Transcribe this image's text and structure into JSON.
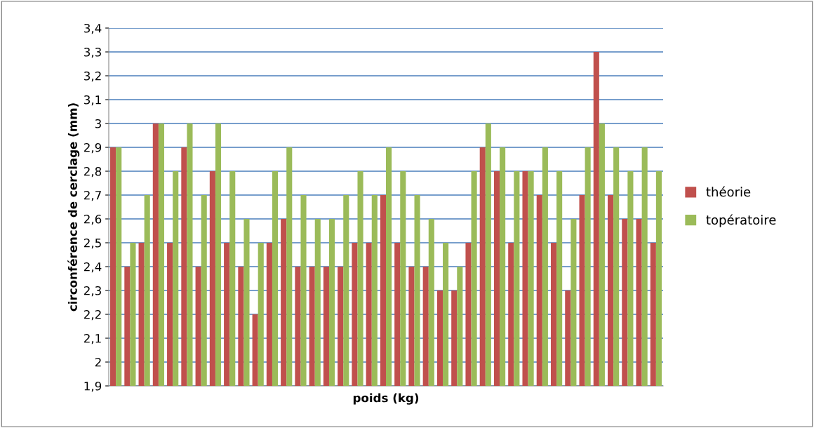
{
  "chart_data": {
    "type": "bar",
    "xlabel": "poids (kg)",
    "ylabel": "circonférence de cerclage (mm)",
    "categories": [
      null,
      null,
      null,
      null,
      null,
      null,
      null,
      null,
      null,
      null,
      null,
      null,
      null,
      null,
      null,
      null,
      null,
      null,
      null,
      null,
      null,
      null,
      null,
      null,
      null,
      null,
      null,
      null,
      null,
      null,
      null,
      null,
      null,
      null,
      null,
      null,
      null,
      null,
      null
    ],
    "series": [
      {
        "name": "théorie",
        "color": "#c0504d",
        "values": [
          2.9,
          2.4,
          2.5,
          3.0,
          2.5,
          2.9,
          2.4,
          2.8,
          2.5,
          2.4,
          2.2,
          2.5,
          2.6,
          2.4,
          2.4,
          2.4,
          2.4,
          2.5,
          2.5,
          2.7,
          2.5,
          2.4,
          2.4,
          2.3,
          2.3,
          2.5,
          2.9,
          2.8,
          2.5,
          2.8,
          2.7,
          2.5,
          2.3,
          2.7,
          3.3,
          2.7,
          2.6,
          2.6,
          2.5
        ]
      },
      {
        "name": "topératoire",
        "color": "#9bbb59",
        "values": [
          2.9,
          2.5,
          2.7,
          3.0,
          2.8,
          3.0,
          2.7,
          3.0,
          2.8,
          2.6,
          2.5,
          2.8,
          2.9,
          2.7,
          2.6,
          2.6,
          2.7,
          2.8,
          2.7,
          2.9,
          2.8,
          2.7,
          2.6,
          2.5,
          2.4,
          2.8,
          3.0,
          2.9,
          2.8,
          2.8,
          2.9,
          2.8,
          2.6,
          2.9,
          3.0,
          2.9,
          2.8,
          2.9,
          2.8
        ]
      }
    ],
    "ylim": [
      1.9,
      3.4
    ],
    "yticks": [
      {
        "value": 1.9,
        "label": "1,9"
      },
      {
        "value": 2.0,
        "label": "2"
      },
      {
        "value": 2.1,
        "label": "2,1"
      },
      {
        "value": 2.2,
        "label": "2,2"
      },
      {
        "value": 2.3,
        "label": "2,3"
      },
      {
        "value": 2.4,
        "label": "2,4"
      },
      {
        "value": 2.5,
        "label": "2,5"
      },
      {
        "value": 2.6,
        "label": "2,6"
      },
      {
        "value": 2.7,
        "label": "2,7"
      },
      {
        "value": 2.8,
        "label": "2,8"
      },
      {
        "value": 2.9,
        "label": "2,9"
      },
      {
        "value": 3.0,
        "label": "3"
      },
      {
        "value": 3.1,
        "label": "3,1"
      },
      {
        "value": 3.2,
        "label": "3,2"
      },
      {
        "value": 3.3,
        "label": "3,3"
      },
      {
        "value": 3.4,
        "label": "3,4"
      }
    ],
    "grid": "y",
    "legend": "right"
  }
}
